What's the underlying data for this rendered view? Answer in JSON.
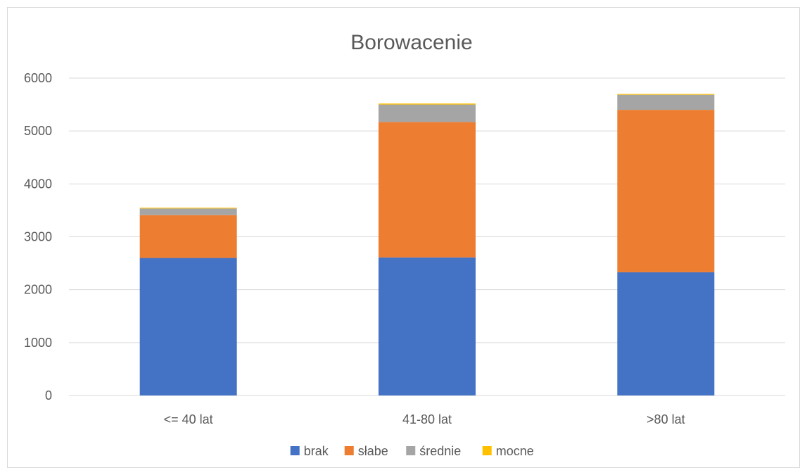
{
  "chart_data": {
    "type": "bar",
    "stacked": true,
    "title": "Borowacenie",
    "xlabel": "",
    "ylabel": "",
    "categories": [
      "<= 40 lat",
      "41-80 lat",
      ">80 lat"
    ],
    "ylim": [
      0,
      6000
    ],
    "yticks": [
      0,
      1000,
      2000,
      3000,
      4000,
      5000,
      6000
    ],
    "grid": true,
    "legend_position": "bottom",
    "series": [
      {
        "name": "brak",
        "color": "#4472C4",
        "values": [
          2600,
          2610,
          2330
        ]
      },
      {
        "name": "słabe",
        "color": "#ED7D31",
        "values": [
          810,
          2560,
          3070
        ]
      },
      {
        "name": "średnie",
        "color": "#A5A5A5",
        "values": [
          125,
          330,
          285
        ]
      },
      {
        "name": "mocne",
        "color": "#FFC000",
        "values": [
          15,
          20,
          15
        ]
      }
    ]
  }
}
